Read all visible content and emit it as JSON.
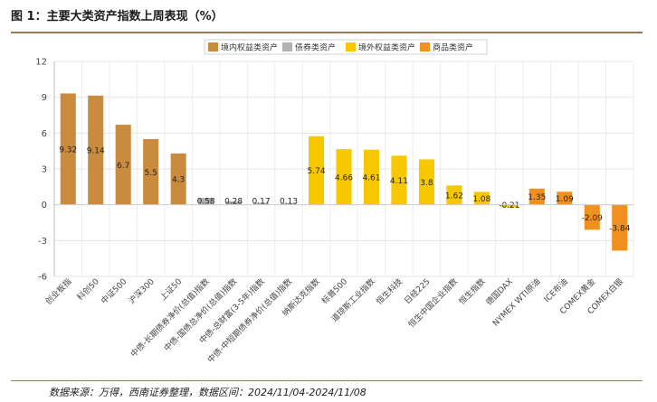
{
  "title": "图 1：主要大类资产指数上周表现（%）",
  "source": "数据来源：万得，西南证券整理，数据区间：2024/11/04-2024/11/08",
  "chart_data": {
    "type": "bar",
    "ylim": [
      -6,
      12
    ],
    "yticks": [
      -6,
      -3,
      0,
      3,
      6,
      9,
      12
    ],
    "grid": true,
    "legend_position": "top",
    "legend": [
      {
        "name": "境内权益类资产",
        "color": "#c98b3e"
      },
      {
        "name": "债券类资产",
        "color": "#b3b3b3"
      },
      {
        "name": "境外权益类资产",
        "color": "#f7c800"
      },
      {
        "name": "商品类资产",
        "color": "#f0901e"
      }
    ],
    "categories": [
      "创业板指",
      "科创50",
      "中证500",
      "沪深300",
      "上证50",
      "中债-长期债券净价(总值)指数",
      "中债-国债总净价(总值)指数",
      "中债-总财富(3-5年)指数",
      "中债-中短期债券净价(总值)指数",
      "纳斯达克指数",
      "标普500",
      "道琼斯工业指数",
      "恒生科技",
      "日经225",
      "恒生中国企业指数",
      "恒生指数",
      "德国DAX",
      "NYMEX WTI原油",
      "ICE布油",
      "COMEX黄金",
      "COMEX白银"
    ],
    "values": [
      9.32,
      9.14,
      6.7,
      5.5,
      4.3,
      0.58,
      0.28,
      0.17,
      0.13,
      5.74,
      4.66,
      4.61,
      4.11,
      3.8,
      1.62,
      1.08,
      -0.21,
      1.35,
      1.09,
      -2.09,
      -3.84
    ],
    "value_labels": [
      "9.32",
      "9.14",
      "6.7",
      "5.5",
      "4.3",
      "0.58",
      "0.28",
      "0.17",
      "0.13",
      "5.74",
      "4.66",
      "4.61",
      "4.11",
      "3.8",
      "1.62",
      "1.08",
      "-0.21",
      "1.35",
      "1.09",
      "-2.09",
      "-3.84"
    ],
    "groups": [
      0,
      0,
      0,
      0,
      0,
      1,
      1,
      1,
      1,
      2,
      2,
      2,
      2,
      2,
      2,
      2,
      2,
      3,
      3,
      3,
      3
    ]
  }
}
